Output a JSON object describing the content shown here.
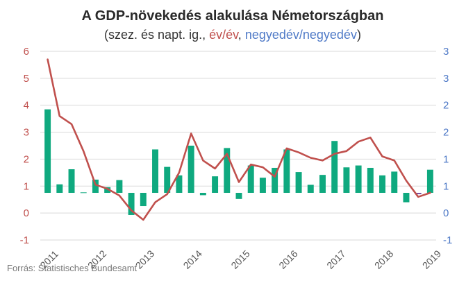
{
  "colors": {
    "yoy": "#c0504d",
    "qoq": "#4f7ac7",
    "bar": "#0fa97f",
    "bar_last": "#7b4fa0",
    "grid": "#d9d9d9",
    "text": "#333333"
  },
  "chart_data": {
    "type": "bar+line",
    "title": "A GDP-növekedés alakulása Németországban",
    "subtitle_prefix": "(szez. és napt. ig., ",
    "subtitle_yoy": "év/év",
    "subtitle_sep": ", ",
    "subtitle_qoq": "negyedév/negyedév",
    "subtitle_suffix": ")",
    "source": "Forrás: Statistisches Bundesamt",
    "left_axis": {
      "min": -1,
      "max": 6,
      "ticks": [
        "-1",
        "0",
        "1",
        "2",
        "3",
        "4",
        "5",
        "6"
      ]
    },
    "right_axis": {
      "min": -1,
      "max": 3,
      "ticks": [
        "-1",
        "0",
        "1",
        "1",
        "2",
        "2",
        "3",
        "3"
      ]
    },
    "x_tick_labels": [
      "2011",
      "2012",
      "2013",
      "2014",
      "2015",
      "2016",
      "2017",
      "2018",
      "2019"
    ],
    "quarters": 33,
    "series": [
      {
        "name": "év/év",
        "type": "line",
        "axis": "left",
        "values": [
          5.7,
          3.6,
          3.3,
          2.3,
          1.05,
          0.9,
          0.65,
          0.1,
          -0.25,
          0.4,
          0.7,
          1.5,
          2.95,
          1.95,
          1.65,
          2.2,
          1.15,
          1.8,
          1.7,
          1.35,
          2.4,
          2.25,
          2.05,
          1.95,
          2.2,
          2.3,
          2.65,
          2.8,
          2.1,
          1.95,
          1.2,
          0.6,
          0.75
        ]
      },
      {
        "name": "negyedév/negyedév",
        "type": "bar",
        "axis": "right",
        "values": [
          1.77,
          0.18,
          0.5,
          0.01,
          0.28,
          0.12,
          0.27,
          -0.47,
          -0.28,
          0.92,
          0.55,
          0.37,
          1.0,
          -0.05,
          0.35,
          0.95,
          -0.13,
          0.58,
          0.32,
          0.53,
          0.92,
          0.44,
          0.17,
          0.38,
          1.1,
          0.54,
          0.58,
          0.53,
          0.37,
          0.45,
          -0.2,
          -0.03,
          0.49
        ]
      }
    ]
  }
}
